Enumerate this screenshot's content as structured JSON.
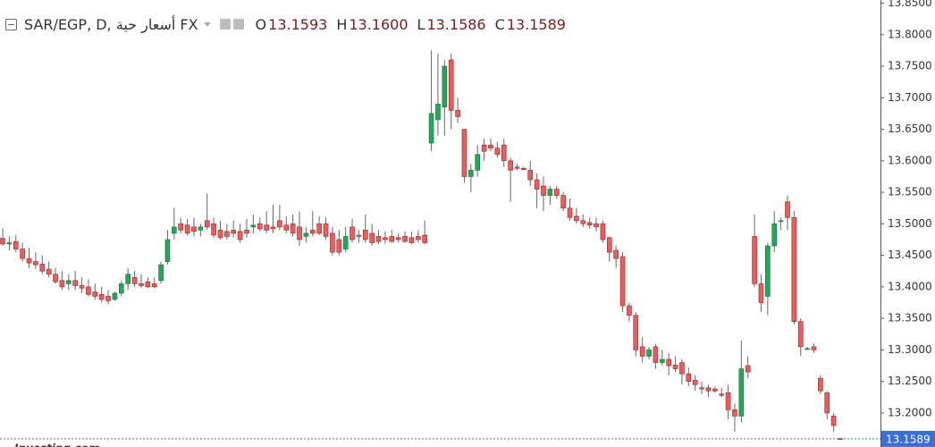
{
  "chart_data": {
    "type": "candlestick",
    "title": "SAR/EGP, D, أسعار حية FX",
    "ohlc_legend": [
      {
        "label": "O",
        "value": "13.1593"
      },
      {
        "label": "H",
        "value": "13.1600"
      },
      {
        "label": "L",
        "value": "13.1586"
      },
      {
        "label": "C",
        "value": "13.1589"
      }
    ],
    "last_price_label": "13.1589",
    "watermark": "Investing.com",
    "up_color": "#26a65b",
    "down_color": "#ef5b5b",
    "price_line_color": "#3a6fd8",
    "ylim": [
      13.146,
      13.855
    ],
    "yticks": [
      {
        "value": 13.85,
        "label": "13.8500"
      },
      {
        "value": 13.8,
        "label": "13.8000"
      },
      {
        "value": 13.75,
        "label": "13.7500"
      },
      {
        "value": 13.7,
        "label": "13.7000"
      },
      {
        "value": 13.65,
        "label": "13.6500"
      },
      {
        "value": 13.6,
        "label": "13.6000"
      },
      {
        "value": 13.55,
        "label": "13.5500"
      },
      {
        "value": 13.5,
        "label": "13.5000"
      },
      {
        "value": 13.45,
        "label": "13.4500"
      },
      {
        "value": 13.4,
        "label": "13.4000"
      },
      {
        "value": 13.35,
        "label": "13.3500"
      },
      {
        "value": 13.3,
        "label": "13.3000"
      },
      {
        "value": 13.25,
        "label": "13.2500"
      },
      {
        "value": 13.2,
        "label": "13.2000"
      }
    ],
    "open": [
      13.477,
      13.468,
      13.472,
      13.46,
      13.445,
      13.44,
      13.436,
      13.428,
      13.42,
      13.41,
      13.405,
      13.41,
      13.402,
      13.4,
      13.392,
      13.388,
      13.385,
      13.38,
      13.39,
      13.405,
      13.415,
      13.405,
      13.408,
      13.405,
      13.41,
      13.44,
      13.485,
      13.5,
      13.498,
      13.495,
      13.49,
      13.505,
      13.5,
      13.49,
      13.488,
      13.49,
      13.488,
      13.49,
      13.495,
      13.5,
      13.498,
      13.495,
      13.505,
      13.498,
      13.5,
      13.495,
      13.48,
      13.49,
      13.5,
      13.5,
      13.485,
      13.475,
      13.46,
      13.495,
      13.482,
      13.49,
      13.485,
      13.48,
      13.478,
      13.48,
      13.478,
      13.48,
      13.478,
      13.48,
      13.482,
      13.628,
      13.665,
      13.685,
      13.76,
      13.68,
      13.65,
      13.575,
      13.585,
      13.625,
      13.625,
      13.62,
      13.625,
      13.6,
      13.59,
      13.588,
      13.585,
      13.57,
      13.56,
      13.545,
      13.555,
      13.545,
      13.525,
      13.512,
      13.505,
      13.502,
      13.5,
      13.5,
      13.478,
      13.458,
      13.448,
      13.37,
      13.355,
      13.305,
      13.29,
      13.305,
      13.28,
      13.285,
      13.276,
      13.28,
      13.262,
      13.252,
      13.24,
      13.24,
      13.238,
      13.23,
      13.232,
      13.205,
      13.195,
      13.275,
      13.48,
      13.405,
      13.385,
      13.465,
      13.505,
      13.535,
      13.51,
      13.345,
      13.302,
      13.305,
      13.255,
      13.232,
      13.195,
      13.1593
    ],
    "high": [
      13.493,
      13.48,
      13.482,
      13.47,
      13.462,
      13.455,
      13.45,
      13.44,
      13.43,
      13.425,
      13.42,
      13.425,
      13.415,
      13.412,
      13.405,
      13.4,
      13.395,
      13.392,
      13.41,
      13.43,
      13.425,
      13.42,
      13.415,
      13.415,
      13.44,
      13.49,
      13.525,
      13.51,
      13.508,
      13.51,
      13.5,
      13.548,
      13.51,
      13.505,
      13.5,
      13.505,
      13.5,
      13.508,
      13.515,
      13.51,
      13.52,
      13.53,
      13.53,
      13.512,
      13.515,
      13.52,
      13.495,
      13.52,
      13.512,
      13.51,
      13.495,
      13.49,
      13.495,
      13.508,
      13.49,
      13.515,
      13.5,
      13.49,
      13.488,
      13.49,
      13.485,
      13.488,
      13.488,
      13.49,
      13.505,
      13.775,
      13.77,
      13.76,
      13.77,
      13.7,
      13.65,
      13.595,
      13.625,
      13.635,
      13.635,
      13.63,
      13.635,
      13.605,
      13.595,
      13.59,
      13.6,
      13.58,
      13.575,
      13.56,
      13.56,
      13.55,
      13.54,
      13.525,
      13.515,
      13.51,
      13.51,
      13.505,
      13.48,
      13.465,
      13.455,
      13.375,
      13.36,
      13.32,
      13.305,
      13.31,
      13.3,
      13.295,
      13.29,
      13.285,
      13.272,
      13.26,
      13.25,
      13.245,
      13.242,
      13.24,
      13.245,
      13.215,
      13.315,
      13.29,
      13.515,
      13.42,
      13.47,
      13.52,
      13.51,
      13.545,
      13.52,
      13.35,
      13.305,
      13.31,
      13.26,
      13.235,
      13.2,
      13.16
    ],
    "low": [
      13.465,
      13.458,
      13.455,
      13.44,
      13.43,
      13.428,
      13.42,
      13.415,
      13.405,
      13.395,
      13.395,
      13.395,
      13.39,
      13.385,
      13.38,
      13.375,
      13.372,
      13.378,
      13.385,
      13.395,
      13.4,
      13.398,
      13.398,
      13.398,
      13.405,
      13.435,
      13.475,
      13.485,
      13.482,
      13.48,
      13.48,
      13.49,
      13.478,
      13.475,
      13.475,
      13.478,
      13.47,
      13.478,
      13.485,
      13.488,
      13.485,
      13.485,
      13.49,
      13.485,
      13.48,
      13.465,
      13.47,
      13.48,
      13.482,
      13.475,
      13.45,
      13.45,
      13.455,
      13.47,
      13.47,
      13.47,
      13.465,
      13.468,
      13.468,
      13.47,
      13.47,
      13.47,
      13.468,
      13.47,
      13.468,
      13.615,
      13.64,
      13.64,
      13.65,
      13.66,
      13.565,
      13.55,
      13.575,
      13.6,
      13.615,
      13.605,
      13.59,
      13.535,
      13.585,
      13.585,
      13.56,
      13.525,
      13.52,
      13.53,
      13.54,
      13.52,
      13.505,
      13.5,
      13.495,
      13.492,
      13.488,
      13.47,
      13.44,
      13.43,
      13.36,
      13.345,
      13.29,
      13.28,
      13.285,
      13.27,
      13.275,
      13.26,
      13.265,
      13.245,
      13.242,
      13.235,
      13.23,
      13.225,
      13.232,
      13.225,
      13.19,
      13.17,
      13.185,
      13.255,
      13.4,
      13.36,
      13.355,
      13.455,
      13.49,
      13.49,
      13.34,
      13.29,
      13.3,
      13.295,
      13.23,
      13.19,
      13.17,
      13.1586
    ],
    "close": [
      13.468,
      13.47,
      13.46,
      13.445,
      13.438,
      13.435,
      13.425,
      13.42,
      13.408,
      13.4,
      13.41,
      13.402,
      13.398,
      13.388,
      13.385,
      13.38,
      13.378,
      13.39,
      13.405,
      13.42,
      13.405,
      13.402,
      13.4,
      13.4,
      13.435,
      13.475,
      13.495,
      13.49,
      13.485,
      13.488,
      13.495,
      13.495,
      13.482,
      13.478,
      13.48,
      13.485,
      13.475,
      13.485,
      13.498,
      13.492,
      13.49,
      13.492,
      13.495,
      13.49,
      13.485,
      13.475,
      13.485,
      13.485,
      13.485,
      13.48,
      13.455,
      13.455,
      13.48,
      13.475,
      13.48,
      13.475,
      13.47,
      13.472,
      13.475,
      13.472,
      13.475,
      13.472,
      13.47,
      13.475,
      13.47,
      13.675,
      13.69,
      13.75,
      13.68,
      13.67,
      13.575,
      13.585,
      13.61,
      13.615,
      13.62,
      13.61,
      13.6,
      13.585,
      13.588,
      13.586,
      13.57,
      13.555,
      13.545,
      13.555,
      13.545,
      13.525,
      13.51,
      13.505,
      13.5,
      13.498,
      13.495,
      13.475,
      13.455,
      13.445,
      13.37,
      13.355,
      13.3,
      13.29,
      13.3,
      13.28,
      13.285,
      13.275,
      13.27,
      13.262,
      13.25,
      13.245,
      13.238,
      13.235,
      13.235,
      13.228,
      13.205,
      13.195,
      13.27,
      13.265,
      13.405,
      13.375,
      13.465,
      13.5,
      13.505,
      13.51,
      13.345,
      13.305,
      13.302,
      13.3,
      13.235,
      13.2,
      13.18,
      13.1589
    ]
  }
}
